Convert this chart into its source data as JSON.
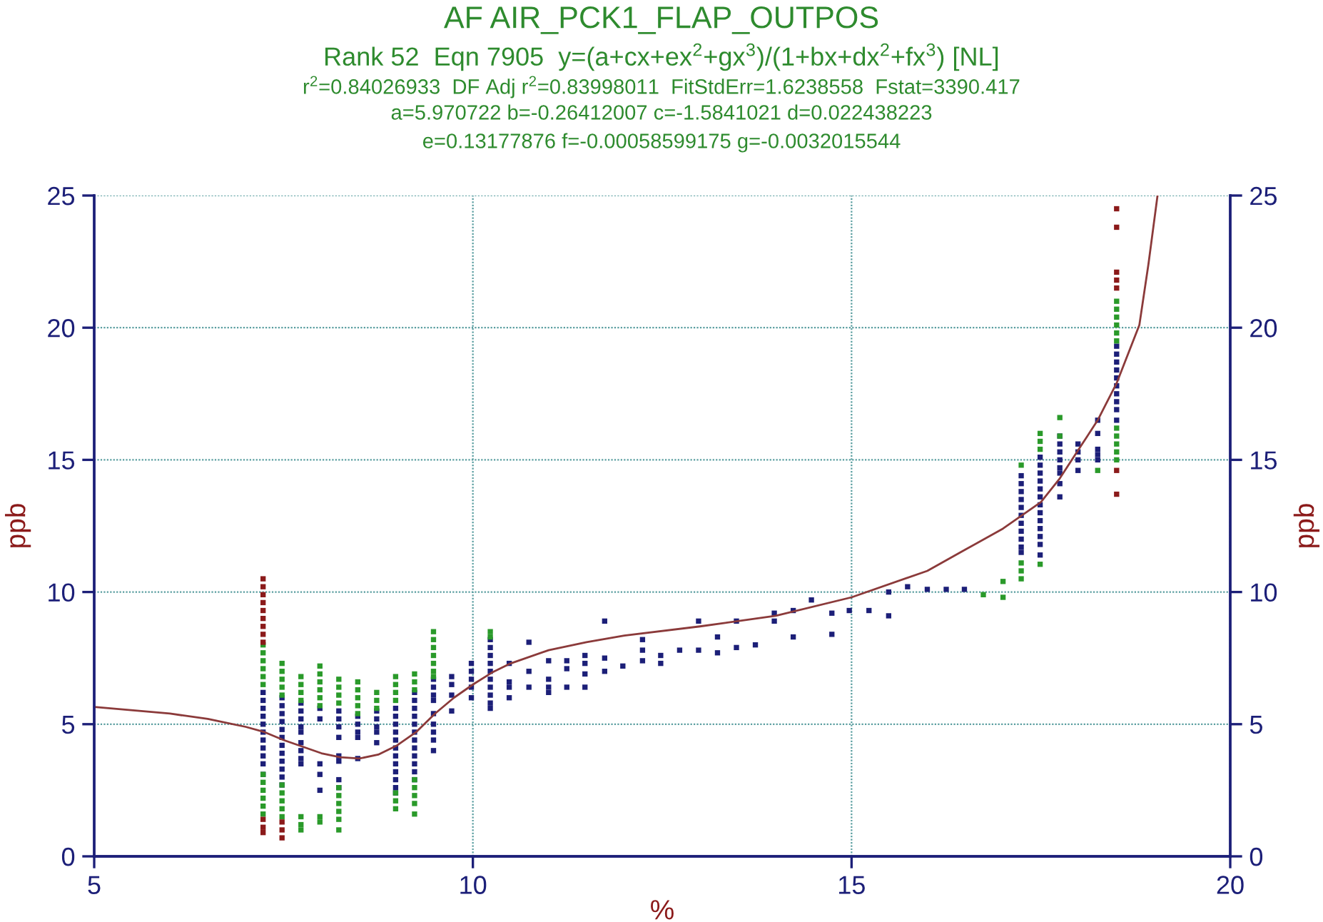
{
  "chart_data": {
    "type": "scatter",
    "title": "AF AIR_PCK1_FLAP_OUTPOS",
    "subtitle": "Rank 52  Eqn 7905  y=(a+cx+ex$^{2}$+gx$^{3}$)/(1+bx+dx$^{2}$+fx$^{3}$) [NL]\nr$^{2}$=0.84026933  DF Adj r$^{2}$=0.83998011  FitStdErr=1.6238558  Fstat=3390.417\na=5.970722 b=-0.26412007 c=-1.5841021 d=0.022438223\ne=0.13177876 f=-0.00058599175 g=-0.0032015544",
    "xlabel": "%",
    "ylabel": "ppb",
    "y2label": "ppb",
    "xlim": [
      5,
      20
    ],
    "xticks": [
      5,
      10,
      15,
      20
    ],
    "ylim": [
      0,
      25
    ],
    "yticks": [
      0,
      5,
      10,
      15,
      20,
      25
    ],
    "y2lim": [
      0,
      25
    ],
    "y2ticks": [
      0,
      5,
      10,
      15,
      20,
      25
    ],
    "grid": true,
    "legend": false,
    "marker": "square",
    "series": [
      {
        "type": "line",
        "color": "#8b3a3a",
        "line_style": "solid",
        "marker": "none",
        "x": [
          5,
          6,
          6.5,
          7,
          7.25,
          7.5,
          8,
          8.25,
          8.5,
          8.75,
          9,
          9.25,
          9.5,
          9.75,
          10,
          10.25,
          10.5,
          11,
          11.5,
          12,
          13,
          14,
          15,
          16,
          16.5,
          17,
          17.25,
          17.5,
          17.75,
          18,
          18.25,
          18.5,
          18.65,
          18.8,
          18.92,
          19.04
        ],
        "values": [
          5.65,
          5.4,
          5.2,
          4.9,
          4.7,
          4.4,
          3.9,
          3.75,
          3.7,
          3.85,
          4.2,
          4.7,
          5.4,
          6.0,
          6.5,
          6.95,
          7.3,
          7.8,
          8.1,
          8.35,
          8.7,
          9.1,
          9.8,
          10.8,
          11.6,
          12.4,
          12.9,
          13.4,
          14.3,
          15.4,
          16.5,
          17.9,
          19.0,
          20.1,
          22.4,
          25
        ]
      },
      {
        "color": "#1c1f78",
        "x": [
          7.23,
          7.23,
          7.23,
          7.23,
          7.23,
          7.23,
          7.23,
          7.23,
          7.23,
          7.23,
          7.23,
          7.48,
          7.48,
          7.48,
          7.48,
          7.48,
          7.48,
          7.48,
          7.48,
          7.48,
          7.48,
          7.48,
          7.48,
          7.73,
          7.73,
          7.73,
          7.73,
          7.73,
          7.73,
          7.73,
          7.73,
          7.73,
          7.98,
          7.98,
          7.98,
          7.98,
          7.98,
          8.23,
          8.23,
          8.23,
          8.23,
          8.23,
          8.23,
          8.23,
          8.23,
          8.48,
          8.48,
          8.48,
          8.48,
          8.48,
          8.73,
          8.73,
          8.73,
          8.73,
          8.73,
          8.98,
          8.98,
          8.98,
          8.98,
          8.98,
          8.98,
          8.98,
          8.98,
          8.98,
          8.98,
          8.98,
          8.98,
          9.23,
          9.23,
          9.23,
          9.23,
          9.23,
          9.23,
          9.23,
          9.23,
          9.23,
          9.23,
          9.23,
          9.23,
          9.48,
          9.48,
          9.48,
          9.48,
          9.48,
          9.48,
          9.48,
          9.48,
          9.48,
          9.72,
          9.72,
          9.72,
          9.72,
          9.98,
          9.98,
          9.98,
          9.98,
          9.98,
          10.23,
          10.23,
          10.23,
          10.23,
          10.23,
          10.23,
          10.23,
          10.23,
          10.23,
          10.23,
          10.48,
          10.48,
          10.48,
          10.48,
          10.74,
          10.74,
          10.74,
          11.0,
          11.0,
          11.0,
          11.0,
          11.24,
          11.24,
          11.24,
          11.48,
          11.48,
          11.48,
          11.48,
          11.74,
          11.74,
          11.74,
          11.98,
          12.24,
          12.24,
          12.24,
          12.48,
          12.48,
          12.73,
          12.98,
          12.98,
          13.23,
          13.23,
          13.48,
          13.48,
          13.73,
          13.98,
          13.98,
          14.23,
          14.23,
          14.47,
          14.74,
          14.74,
          14.97,
          15.23,
          15.49,
          15.49,
          15.74,
          16.0,
          16.25,
          16.49,
          17.24,
          17.24,
          17.24,
          17.24,
          17.24,
          17.24,
          17.24,
          17.24,
          17.24,
          17.24,
          17.24,
          17.49,
          17.49,
          17.49,
          17.49,
          17.49,
          17.49,
          17.49,
          17.49,
          17.49,
          17.49,
          17.49,
          17.49,
          17.49,
          17.75,
          17.75,
          17.75,
          17.75,
          17.75,
          17.75,
          17.75,
          17.75,
          17.99,
          17.99,
          17.99,
          17.99,
          18.25,
          18.25,
          18.25,
          18.25,
          18.25,
          18.5,
          18.5,
          18.5,
          18.5,
          18.5,
          18.5,
          18.5,
          18.5,
          18.5,
          18.5
        ],
        "values": [
          6.2,
          5.9,
          5.6,
          5.3,
          5.0,
          4.7,
          4.4,
          4.1,
          3.8,
          3.5,
          3.1,
          6.0,
          5.7,
          5.4,
          5.1,
          4.8,
          4.5,
          4.2,
          3.9,
          3.6,
          3.3,
          3.0,
          2.7,
          5.8,
          5.5,
          5.2,
          4.9,
          4.7,
          4.3,
          4.0,
          3.7,
          3.5,
          5.6,
          5.2,
          3.5,
          3.1,
          2.5,
          5.5,
          5.2,
          4.9,
          4.5,
          3.8,
          3.6,
          2.9,
          2.6,
          5.3,
          5.0,
          4.7,
          4.5,
          3.7,
          5.5,
          5.2,
          4.9,
          4.7,
          4.3,
          5.6,
          5.3,
          5.0,
          4.7,
          4.4,
          4.1,
          3.8,
          3.5,
          3.2,
          2.9,
          2.6,
          2.4,
          6.2,
          5.9,
          5.6,
          5.3,
          5.0,
          4.7,
          4.4,
          4.1,
          3.8,
          3.5,
          3.2,
          2.9,
          6.7,
          6.4,
          6.1,
          5.9,
          5.4,
          5.0,
          4.7,
          4.4,
          4.0,
          6.8,
          6.5,
          6.1,
          5.5,
          7.3,
          7.0,
          6.7,
          6.4,
          6.0,
          8.2,
          7.9,
          7.6,
          7.3,
          7.0,
          6.7,
          6.4,
          6.1,
          5.8,
          5.6,
          7.3,
          6.6,
          6.4,
          6.0,
          8.1,
          7.0,
          6.4,
          7.4,
          6.7,
          6.4,
          6.2,
          7.4,
          7.1,
          6.4,
          7.6,
          7.3,
          6.9,
          6.4,
          8.9,
          7.5,
          7.0,
          7.2,
          8.2,
          7.8,
          7.4,
          7.6,
          7.3,
          7.8,
          8.9,
          7.8,
          8.3,
          7.7,
          8.9,
          7.9,
          8.0,
          9.2,
          8.9,
          9.3,
          8.3,
          9.7,
          9.2,
          8.4,
          9.3,
          9.3,
          10.0,
          9.1,
          10.2,
          10.1,
          10.1,
          10.1,
          14.4,
          14.1,
          13.8,
          13.5,
          13.2,
          12.9,
          12.6,
          12.3,
          12.0,
          11.7,
          11.5,
          15.1,
          14.8,
          14.5,
          14.2,
          13.9,
          13.6,
          13.3,
          13.0,
          12.7,
          12.4,
          12.1,
          11.8,
          11.4,
          15.9,
          15.6,
          15.3,
          15.0,
          14.7,
          14.5,
          14.1,
          13.6,
          15.6,
          15.3,
          15.0,
          14.6,
          16.5,
          16.0,
          15.4,
          15.2,
          15.0,
          19.3,
          19.0,
          18.7,
          18.4,
          18.1,
          17.8,
          17.5,
          17.2,
          16.9,
          16.5
        ]
      },
      {
        "color": "#2a9a2a",
        "x": [
          7.23,
          7.23,
          7.23,
          7.23,
          7.23,
          7.23,
          7.23,
          7.23,
          7.23,
          7.23,
          7.23,
          7.23,
          7.48,
          7.48,
          7.48,
          7.48,
          7.48,
          7.48,
          7.48,
          7.48,
          7.48,
          7.48,
          7.73,
          7.73,
          7.73,
          7.73,
          7.73,
          7.73,
          7.73,
          7.98,
          7.98,
          7.98,
          7.98,
          7.98,
          7.98,
          7.98,
          7.98,
          8.23,
          8.23,
          8.23,
          8.23,
          8.23,
          8.23,
          8.23,
          8.23,
          8.23,
          8.23,
          8.48,
          8.48,
          8.48,
          8.48,
          8.48,
          8.73,
          8.73,
          8.73,
          8.98,
          8.98,
          8.98,
          8.98,
          8.98,
          8.98,
          8.98,
          9.23,
          9.23,
          9.23,
          9.23,
          9.23,
          9.23,
          9.23,
          9.23,
          9.48,
          9.48,
          9.48,
          9.48,
          9.48,
          9.48,
          9.48,
          10.23,
          10.23,
          16.74,
          17.0,
          17.0,
          17.24,
          17.24,
          17.24,
          17.24,
          17.49,
          17.49,
          17.49,
          17.49,
          17.75,
          17.75,
          18.25,
          18.5,
          18.5,
          18.5,
          18.5,
          18.5,
          18.5,
          18.5,
          18.5,
          18.5,
          18.5,
          18.5
        ],
        "values": [
          8.0,
          7.7,
          7.4,
          7.1,
          6.8,
          6.5,
          3.1,
          2.8,
          2.5,
          2.2,
          1.9,
          1.6,
          7.3,
          7.0,
          6.7,
          6.4,
          6.1,
          2.7,
          2.4,
          2.1,
          1.8,
          1.5,
          6.8,
          6.5,
          6.2,
          5.9,
          1.5,
          1.2,
          1.0,
          7.2,
          6.9,
          6.6,
          6.3,
          6.0,
          5.7,
          1.5,
          1.3,
          6.7,
          6.4,
          6.1,
          5.8,
          2.6,
          2.3,
          2.0,
          1.7,
          1.4,
          1.0,
          6.6,
          6.3,
          6.0,
          5.7,
          5.4,
          6.2,
          5.9,
          5.6,
          6.8,
          6.5,
          6.2,
          5.9,
          2.4,
          2.1,
          1.8,
          6.9,
          6.6,
          6.3,
          2.9,
          2.6,
          2.3,
          2.0,
          1.6,
          8.5,
          8.2,
          7.9,
          7.6,
          7.3,
          7.0,
          6.8,
          8.5,
          8.3,
          9.9,
          10.4,
          9.8,
          14.8,
          11.1,
          10.8,
          10.5,
          16.0,
          15.7,
          15.4,
          11.05,
          16.6,
          15.9,
          14.6,
          21.0,
          20.7,
          20.4,
          20.1,
          19.8,
          19.5,
          16.2,
          15.9,
          15.6,
          15.3,
          15.0
        ]
      },
      {
        "color": "#8b1a1a",
        "x": [
          7.23,
          7.23,
          7.23,
          7.23,
          7.23,
          7.23,
          7.23,
          7.23,
          7.23,
          7.23,
          7.23,
          7.23,
          7.48,
          7.48,
          7.48,
          18.5,
          18.5,
          18.5,
          18.5,
          18.5,
          18.5,
          18.5
        ],
        "values": [
          10.5,
          10.2,
          9.9,
          9.6,
          9.3,
          9.0,
          8.7,
          8.4,
          8.1,
          1.4,
          1.1,
          0.9,
          1.3,
          1.0,
          0.7,
          24.5,
          23.8,
          22.1,
          21.8,
          21.5,
          14.6,
          13.7
        ]
      }
    ]
  }
}
